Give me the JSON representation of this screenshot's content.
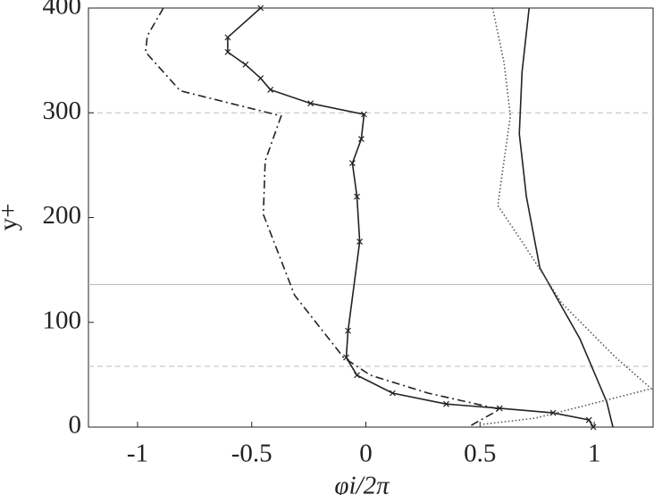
{
  "chart_data": {
    "type": "line",
    "xlabel": "φi/2π",
    "ylabel": "y+",
    "xlim": [
      -1.215,
      1.258
    ],
    "ylim": [
      0,
      400
    ],
    "xticks": [
      -1,
      -0.5,
      0,
      0.5,
      1
    ],
    "yticks": [
      0,
      100,
      200,
      300,
      400
    ],
    "hlines": [
      {
        "value": 300,
        "style": "dashed"
      },
      {
        "value": 136,
        "style": "solid"
      },
      {
        "value": 58,
        "style": "dashed"
      }
    ],
    "series": [
      {
        "color": "#222222",
        "dash": "9 4 2 4",
        "marker": "none",
        "x": [
          -0.887,
          -0.957,
          -0.965,
          -0.813,
          -0.371,
          -0.441,
          -0.449,
          -0.3125,
          -0.098,
          0.02,
          0.273,
          0.586,
          0.469,
          0.449
        ],
        "values": [
          400,
          373.5,
          358,
          321,
          297,
          254,
          203,
          126,
          66.5,
          49.5,
          32.4,
          17,
          2.6,
          0
        ]
      },
      {
        "color": "#222222",
        "dash": "none",
        "marker": "x",
        "x": [
          -0.461,
          -0.605,
          -0.605,
          -0.527,
          -0.461,
          -0.418,
          -0.242,
          -0.008,
          -0.02,
          -0.059,
          -0.039,
          -0.027,
          -0.078,
          -0.086,
          -0.039,
          0.117,
          0.352,
          0.586,
          0.82,
          0.977,
          0.996
        ],
        "values": [
          400,
          372,
          358,
          346,
          333,
          322,
          309,
          298.5,
          275,
          252,
          220,
          177,
          92,
          66.5,
          49.5,
          32.4,
          22,
          18,
          13.6,
          6.8,
          0
        ]
      },
      {
        "color": "#222222",
        "dash": "none",
        "marker": "none",
        "x": [
          0.715,
          0.684,
          0.672,
          0.703,
          0.762,
          0.938,
          1.055,
          1.082
        ],
        "values": [
          400,
          339,
          280,
          220,
          152,
          84,
          24,
          0
        ]
      },
      {
        "color": "#555555",
        "dash": "1.5 2.5",
        "marker": "none",
        "x": [
          0.555,
          0.605,
          0.633,
          0.605,
          0.578,
          0.684,
          0.859,
          1.094,
          1.25,
          0.742,
          0.508
        ],
        "values": [
          400,
          348,
          297,
          254,
          211.5,
          177,
          118,
          66.5,
          36.7,
          8.5,
          2.6
        ]
      }
    ]
  }
}
